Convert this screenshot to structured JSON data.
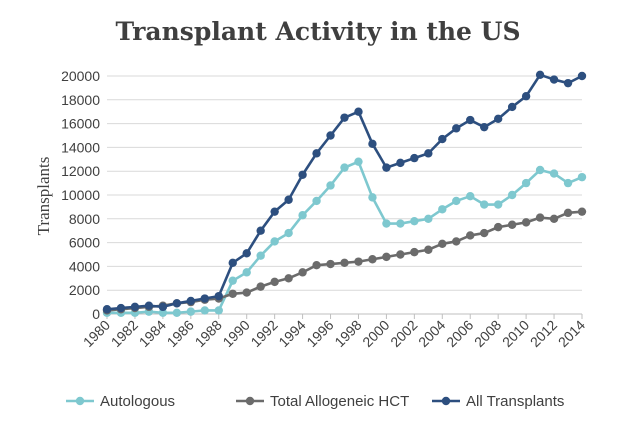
{
  "chart_data": {
    "type": "line",
    "title": "Transplant Activity in the US",
    "xlabel": "",
    "ylabel": "Transplants",
    "x": [
      1980,
      1981,
      1982,
      1983,
      1984,
      1985,
      1986,
      1987,
      1988,
      1989,
      1990,
      1991,
      1992,
      1993,
      1994,
      1995,
      1996,
      1997,
      1998,
      1999,
      2000,
      2001,
      2002,
      2003,
      2004,
      2005,
      2006,
      2007,
      2008,
      2009,
      2010,
      2011,
      2012,
      2013,
      2014
    ],
    "x_tick_labels": [
      "1980",
      "1982",
      "1984",
      "1986",
      "1988",
      "1990",
      "1992",
      "1994",
      "1996",
      "1998",
      "2000",
      "2002",
      "2004",
      "2006",
      "2008",
      "2010",
      "2012",
      "2014"
    ],
    "ylim": [
      0,
      20000
    ],
    "y_ticks": [
      0,
      2000,
      4000,
      6000,
      8000,
      10000,
      12000,
      14000,
      16000,
      18000,
      20000
    ],
    "y_tick_labels": [
      "0",
      "2000",
      "4000",
      "6000",
      "8000",
      "10000",
      "12000",
      "14000",
      "16000",
      "18000",
      "20000"
    ],
    "grid": true,
    "legend_position": "bottom",
    "series": [
      {
        "name": "Autologous",
        "color": "#7ec8cf",
        "values": [
          100,
          100,
          100,
          200,
          100,
          100,
          200,
          300,
          300,
          2800,
          3500,
          4900,
          6100,
          6800,
          8300,
          9500,
          10800,
          12300,
          12800,
          9800,
          7600,
          7600,
          7800,
          8000,
          8800,
          9500,
          9900,
          9200,
          9200,
          10000,
          11000,
          12100,
          11800,
          11000,
          11500
        ]
      },
      {
        "name": "Total Allogeneic HCT",
        "color": "#6b6b6b",
        "values": [
          300,
          400,
          500,
          600,
          700,
          900,
          1000,
          1200,
          1300,
          1700,
          1800,
          2300,
          2700,
          3000,
          3500,
          4100,
          4200,
          4300,
          4400,
          4600,
          4800,
          5000,
          5200,
          5400,
          5900,
          6100,
          6600,
          6800,
          7300,
          7500,
          7700,
          8100,
          8000,
          8500,
          8600
        ]
      },
      {
        "name": "All Transplants",
        "color": "#2d4f7f",
        "values": [
          400,
          500,
          600,
          700,
          600,
          900,
          1100,
          1300,
          1500,
          4300,
          5100,
          7000,
          8600,
          9600,
          11700,
          13500,
          15000,
          16500,
          17000,
          14300,
          12300,
          12700,
          13100,
          13500,
          14700,
          15600,
          16300,
          15700,
          16400,
          17400,
          18300,
          20100,
          19700,
          19400,
          20000
        ]
      }
    ]
  }
}
